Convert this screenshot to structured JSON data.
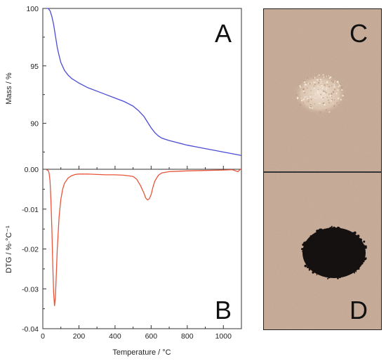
{
  "chart_data": [
    {
      "type": "line",
      "panel_label": "A",
      "xlabel": "",
      "ylabel": "Mass / %",
      "xlim": [
        0,
        1100
      ],
      "ylim": [
        86,
        100
      ],
      "yticks": [
        90,
        95,
        100
      ],
      "y_tick_labels": [
        "90",
        "95",
        "100"
      ],
      "line_color": "#4b4bd6",
      "series": [
        {
          "x": [
            20,
            30,
            40,
            50,
            60,
            70,
            80,
            90,
            100,
            120,
            140,
            160,
            180,
            200,
            250,
            300,
            350,
            400,
            450,
            500,
            530,
            560,
            580,
            600,
            620,
            640,
            660,
            700,
            750,
            800,
            850,
            900,
            950,
            1000,
            1050,
            1100
          ],
          "values": [
            100,
            100,
            99.8,
            99.3,
            98.6,
            97.6,
            96.6,
            95.9,
            95.3,
            94.6,
            94.2,
            93.9,
            93.7,
            93.5,
            93.1,
            92.8,
            92.5,
            92.2,
            91.9,
            91.5,
            91.1,
            90.6,
            90.1,
            89.6,
            89.2,
            88.9,
            88.7,
            88.5,
            88.3,
            88.1,
            87.95,
            87.8,
            87.65,
            87.5,
            87.35,
            87.2
          ]
        }
      ]
    },
    {
      "type": "line",
      "panel_label": "B",
      "xlabel": "Temperature / °C",
      "ylabel": "DTG / %·°C⁻¹",
      "xlim": [
        0,
        1100
      ],
      "ylim": [
        -0.04,
        0.0
      ],
      "xticks": [
        0,
        200,
        400,
        600,
        800,
        1000
      ],
      "x_tick_labels": [
        "0",
        "200",
        "400",
        "600",
        "800",
        "1000"
      ],
      "yticks": [
        -0.04,
        -0.03,
        -0.02,
        -0.01,
        0.0
      ],
      "y_tick_labels": [
        "-0.04",
        "-0.03",
        "-0.02",
        "-0.01",
        "0.00"
      ],
      "line_color": "#e8553a",
      "series": [
        {
          "x": [
            20,
            30,
            35,
            40,
            45,
            50,
            55,
            60,
            65,
            70,
            75,
            80,
            90,
            100,
            110,
            120,
            140,
            160,
            180,
            200,
            250,
            300,
            350,
            400,
            450,
            500,
            520,
            540,
            560,
            570,
            580,
            590,
            600,
            610,
            620,
            640,
            660,
            700,
            750,
            800,
            900,
            1000,
            1050,
            1080,
            1100
          ],
          "values": [
            -0.0001,
            -0.0003,
            -0.001,
            -0.003,
            -0.008,
            -0.015,
            -0.024,
            -0.031,
            -0.0343,
            -0.032,
            -0.026,
            -0.02,
            -0.012,
            -0.0075,
            -0.005,
            -0.0035,
            -0.0022,
            -0.0016,
            -0.0013,
            -0.0012,
            -0.0012,
            -0.0013,
            -0.0014,
            -0.0014,
            -0.0015,
            -0.0018,
            -0.0025,
            -0.004,
            -0.006,
            -0.0072,
            -0.0077,
            -0.0074,
            -0.0063,
            -0.0045,
            -0.003,
            -0.0015,
            -0.0009,
            -0.0006,
            -0.0005,
            -0.0004,
            -0.0003,
            -0.0002,
            -0.0001,
            -0.0006,
            0.0002
          ]
        }
      ]
    }
  ],
  "photos": [
    {
      "panel_label": "C",
      "background": "#c6a994",
      "spot_color": "#ead8c6"
    },
    {
      "panel_label": "D",
      "background": "#c6a994",
      "spot_color": "#141010"
    }
  ]
}
